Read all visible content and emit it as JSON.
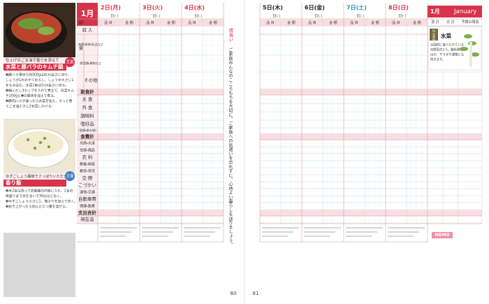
{
  "left_page": {
    "month": "1月",
    "days": [
      "2日(月)",
      "3日(火)",
      "4日(水)"
    ],
    "day_sub": "日( )",
    "column_item": "品 目",
    "column_amount": "金 額",
    "side_dish_group": "副 食",
    "row_labels": [
      "収 入",
      "肉類・魚卵・乳品など",
      "野菜類・果物など",
      "その他",
      "副食計",
      "主 食",
      "外 食",
      "調味料",
      "嗜好品",
      "(酒類・飲み物)",
      "食費計",
      "光熱・水道",
      "住居・備品",
      "衣 料",
      "教養・娯楽",
      "教育・育児",
      "交 際",
      "こづかい",
      "通信・交通",
      "自動車費",
      "保健・医療",
      "支出合計",
      "現在高"
    ],
    "recipes": [
      {
        "subtitle": "仕上げのごま油で香りを添えて",
        "title": "水菜と豚バラのキムチ鍋",
        "tag": "主菜",
        "lines": [
          "❶豚バラ薄切り肉300gは4cm長さに切り、",
          "しょうが1片のすりおろし、しょうゆ大さじ1",
          "をもみ込む。水菜1束は5cm長さに切る。",
          "❷鍋にだし3カップを入れて煮立て、白菜キム",
          "チ200gと❶の豚肉を加えて煮る。",
          "❸豚肉に火が通ったら水菜を加え、さっと煮",
          "てごま油小さじ2を回しかける。"
        ]
      },
      {
        "subtitle": "ゆずごしょう風味でさっぱりいただきます",
        "title": "香り飯",
        "tag": "主食",
        "lines": [
          "❶米2合は洗って炊飯器の内釜に入れ、2合の",
          "目盛りまで水を注いで30分ほどおく。",
          "❷ゆずごしょう小さじ1、塩少々を加えて炊く。",
          "❸炊き上がったら刻んだ三つ葉を混ぜる。"
        ]
      }
    ],
    "vertical_heading": "成長い",
    "vertical_text": "ご家族みんなのこころもちを大切に。ご家族への気遣いを忘れずに、心地よい暮らしを送りましょう。",
    "page_number": "80"
  },
  "right_page": {
    "days": [
      "5日(木)",
      "6日(金)",
      "7日(土)",
      "8日(日)"
    ],
    "month": "1月",
    "month_en": "January",
    "summary_headers": [
      "週 計",
      "合 計",
      "予算の残高"
    ],
    "feature": {
      "tag": "旬の食材",
      "title": "水菜",
      "lines": [
        "全国的に食べられている",
        "京野菜の1つ。鍋料理の",
        "ほか、サラダや漬物にも",
        "向きます。"
      ]
    },
    "memo": "MEMO",
    "page_number": "81"
  }
}
